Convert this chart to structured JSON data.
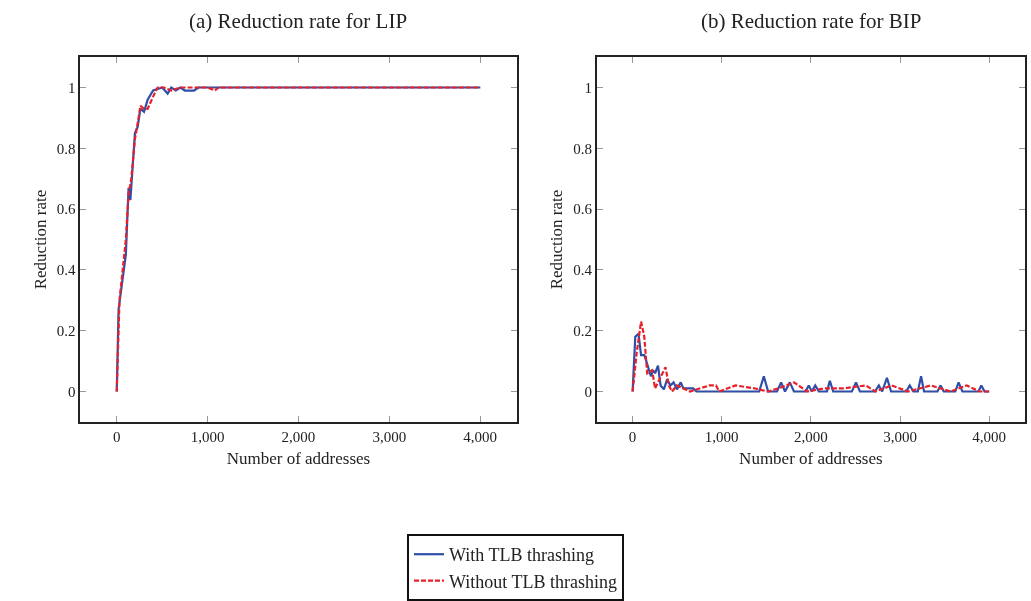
{
  "chart_data": [
    {
      "type": "line",
      "title": "(a) Reduction rate for LIP",
      "xlabel": "Number of addresses",
      "ylabel": "Reduction rate",
      "xlim": [
        -400,
        4400
      ],
      "ylim": [
        -0.1,
        1.1
      ],
      "xticks": [
        {
          "value": 0,
          "label": "0"
        },
        {
          "value": 1000,
          "label": "1,000"
        },
        {
          "value": 2000,
          "label": "2,000"
        },
        {
          "value": 3000,
          "label": "3,000"
        },
        {
          "value": 4000,
          "label": "4,000"
        }
      ],
      "yticks": [
        0,
        0.2,
        0.4,
        0.6,
        0.8,
        1
      ],
      "legend": "bottom",
      "series": [
        {
          "name": "With TLB thrashing",
          "color": "#2f4ea8",
          "line_style": "solid",
          "x": [
            0,
            20,
            100,
            130,
            150,
            200,
            230,
            260,
            300,
            340,
            400,
            500,
            560,
            600,
            650,
            700,
            750,
            850,
            900,
            4000
          ],
          "values": [
            0,
            0.27,
            0.45,
            0.67,
            0.63,
            0.85,
            0.87,
            0.93,
            0.92,
            0.96,
            0.99,
            1.0,
            0.98,
            1.0,
            0.99,
            1.0,
            0.99,
            0.99,
            1.0,
            1.0
          ]
        },
        {
          "name": "Without TLB thrashing",
          "color": "#e8202a",
          "line_style": "dashed",
          "x": [
            0,
            30,
            100,
            130,
            160,
            200,
            240,
            260,
            300,
            340,
            400,
            450,
            520,
            600,
            700,
            1000,
            1080,
            1120,
            4000
          ],
          "values": [
            0,
            0.3,
            0.5,
            0.65,
            0.7,
            0.83,
            0.9,
            0.94,
            0.93,
            0.93,
            0.97,
            1.0,
            1.0,
            0.99,
            1.0,
            1.0,
            0.99,
            1.0,
            1.0
          ]
        }
      ]
    },
    {
      "type": "line",
      "title": "(b) Reduction rate for BIP",
      "xlabel": "Number of addresses",
      "ylabel": "Reduction rate",
      "xlim": [
        -400,
        4400
      ],
      "ylim": [
        -0.1,
        1.1
      ],
      "xticks": [
        {
          "value": 0,
          "label": "0"
        },
        {
          "value": 1000,
          "label": "1,000"
        },
        {
          "value": 2000,
          "label": "2,000"
        },
        {
          "value": 3000,
          "label": "3,000"
        },
        {
          "value": 4000,
          "label": "4,000"
        }
      ],
      "yticks": [
        0,
        0.2,
        0.4,
        0.6,
        0.8,
        1
      ],
      "legend": "bottom",
      "series": [
        {
          "name": "With TLB thrashing",
          "color": "#2f4ea8",
          "line_style": "solid",
          "x": [
            0,
            30,
            66,
            95,
            131,
            164,
            205,
            230,
            252,
            285,
            314,
            351,
            387,
            424,
            460,
            497,
            540,
            570,
            680,
            716,
            771,
            1420,
            1472,
            1520,
            1620,
            1666,
            1710,
            1764,
            1810,
            1940,
            1976,
            2010,
            2049,
            2090,
            2180,
            2213,
            2250,
            2460,
            2506,
            2550,
            2720,
            2762,
            2800,
            2853,
            2900,
            3070,
            3109,
            3150,
            3200,
            3236,
            3270,
            3420,
            3455,
            3490,
            3620,
            3657,
            3700,
            3880,
            3912,
            3949,
            4000
          ],
          "values": [
            0,
            0.18,
            0.19,
            0.12,
            0.12,
            0.09,
            0.05,
            0.07,
            0.06,
            0.085,
            0.02,
            0.007,
            0.04,
            0.02,
            0.03,
            0.007,
            0.03,
            0.01,
            0.01,
            0,
            0,
            0,
            0.05,
            0,
            0,
            0.03,
            0,
            0.03,
            0,
            0,
            0.02,
            0,
            0.02,
            0,
            0,
            0.035,
            0,
            0,
            0.03,
            0,
            0,
            0.02,
            0,
            0.045,
            0,
            0,
            0.02,
            0,
            0,
            0.05,
            0,
            0,
            0.02,
            0,
            0,
            0.03,
            0,
            0,
            0.02,
            0,
            0
          ]
        },
        {
          "name": "Without TLB thrashing",
          "color": "#e8202a",
          "line_style": "dashed",
          "x": [
            0,
            47,
            95,
            131,
            164,
            219,
            252,
            369,
            406,
            442,
            497,
            643,
            862,
            935,
            972,
            1155,
            1374,
            1520,
            1630,
            1812,
            1958,
            2140,
            2359,
            2615,
            2725,
            2907,
            3090,
            3346,
            3565,
            3748,
            3894,
            4000
          ],
          "values": [
            0,
            0.13,
            0.23,
            0.18,
            0.06,
            0.07,
            0.01,
            0.08,
            0.02,
            0,
            0.02,
            0,
            0.02,
            0.02,
            0,
            0.02,
            0.01,
            0,
            0.01,
            0.03,
            0,
            0.01,
            0.01,
            0.02,
            0,
            0.02,
            0,
            0.02,
            0,
            0.02,
            0,
            0
          ]
        }
      ]
    }
  ]
}
